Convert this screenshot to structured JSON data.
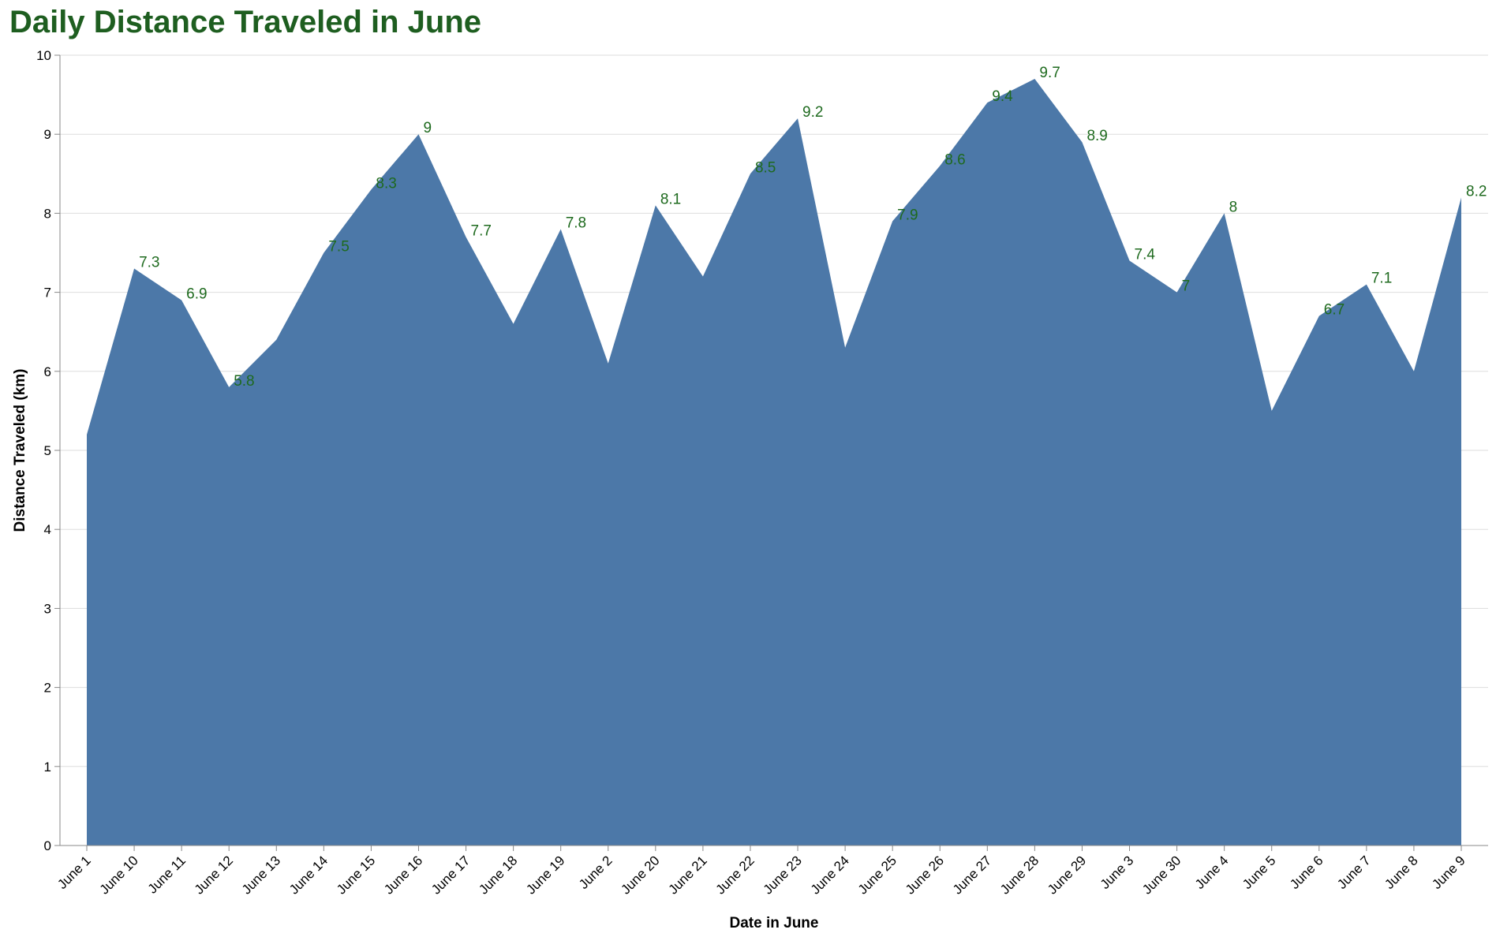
{
  "chart_data": {
    "type": "area",
    "title": "Daily Distance Traveled in June",
    "xlabel": "Date in June",
    "ylabel": "Distance Traveled (km)",
    "categories": [
      "June 1",
      "June 10",
      "June 11",
      "June 12",
      "June 13",
      "June 14",
      "June 15",
      "June 16",
      "June 17",
      "June 18",
      "June 19",
      "June 2",
      "June 20",
      "June 21",
      "June 22",
      "June 23",
      "June 24",
      "June 25",
      "June 26",
      "June 27",
      "June 28",
      "June 29",
      "June 3",
      "June 30",
      "June 4",
      "June 5",
      "June 6",
      "June 7",
      "June 8",
      "June 9"
    ],
    "values": [
      5.2,
      7.3,
      6.9,
      5.8,
      6.4,
      7.5,
      8.3,
      9.0,
      7.7,
      6.6,
      7.8,
      6.1,
      8.1,
      7.2,
      8.5,
      9.2,
      6.3,
      7.9,
      8.6,
      9.4,
      9.7,
      8.9,
      7.4,
      7.0,
      8.0,
      5.5,
      6.7,
      7.1,
      6.0,
      8.2
    ],
    "data_labels": [
      "",
      "7.3",
      "6.9",
      "5.8",
      "",
      "7.5",
      "8.3",
      "9",
      "7.7",
      "",
      "7.8",
      "",
      "8.1",
      "",
      "8.5",
      "9.2",
      "",
      "7.9",
      "8.6",
      "9.4",
      "9.7",
      "8.9",
      "7.4",
      "7",
      "8",
      "",
      "6.7",
      "7.1",
      "",
      "8.2"
    ],
    "ylim": [
      0,
      10
    ],
    "yticks": [
      "0",
      "1",
      "2",
      "3",
      "4",
      "5",
      "6",
      "7",
      "8",
      "9",
      "10"
    ],
    "grid": true,
    "area_color": "#4c78a8",
    "title_color": "#1e5e20",
    "label_color": "#1e6a1e"
  }
}
